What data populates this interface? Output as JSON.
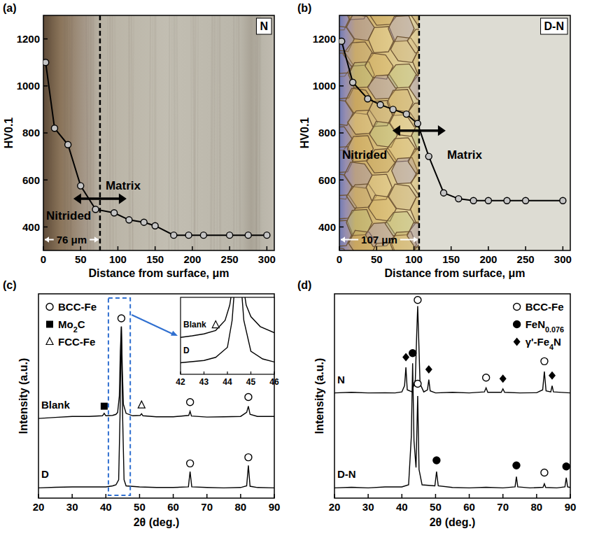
{
  "chart_data": [
    {
      "type": "line",
      "panel_label": "(a)",
      "tag": "N",
      "x_label": "Distance from surface, μm",
      "y_label": "HV0.1",
      "xlim": [
        0,
        310
      ],
      "ylim": [
        300,
        1300
      ],
      "xticks": [
        0,
        50,
        100,
        150,
        200,
        250,
        300
      ],
      "yticks": [
        400,
        600,
        800,
        1000,
        1200
      ],
      "grid": false,
      "series": [
        {
          "x": [
            3,
            15,
            33,
            50,
            70,
            95,
            115,
            135,
            150,
            175,
            195,
            215,
            250,
            275,
            300
          ],
          "values": [
            1100,
            820,
            750,
            575,
            475,
            460,
            430,
            420,
            405,
            365,
            365,
            365,
            365,
            365,
            365
          ],
          "color": "#000000",
          "marker": "circle"
        }
      ],
      "region_labels": [
        "Nitrided",
        "Matrix"
      ],
      "boundary": {
        "value": 76,
        "label": "76 μm"
      }
    },
    {
      "type": "line",
      "panel_label": "(b)",
      "tag": "D-N",
      "x_label": "Distance from surface, μm",
      "y_label": "HV0.1",
      "xlim": [
        0,
        310
      ],
      "ylim": [
        300,
        1300
      ],
      "xticks": [
        0,
        50,
        100,
        150,
        200,
        250,
        300
      ],
      "yticks": [
        400,
        600,
        800,
        1000,
        1200
      ],
      "grid": false,
      "series": [
        {
          "x": [
            3,
            18,
            38,
            55,
            72,
            90,
            105,
            120,
            140,
            160,
            180,
            200,
            225,
            250,
            300
          ],
          "values": [
            1190,
            1015,
            945,
            920,
            900,
            880,
            840,
            700,
            545,
            520,
            512,
            512,
            512,
            512,
            512
          ],
          "color": "#000000",
          "marker": "circle"
        }
      ],
      "region_labels": [
        "Nitrided",
        "Matrix"
      ],
      "boundary": {
        "value": 107,
        "label": "107 μm"
      }
    },
    {
      "type": "line",
      "panel_label": "(c)",
      "x_label": "2θ (deg.)",
      "y_label": "Intensity (a.u.)",
      "xlim": [
        20,
        90
      ],
      "ylim": [
        0,
        100
      ],
      "xticks": [
        20,
        30,
        40,
        50,
        60,
        70,
        80,
        90
      ],
      "tick_labels": "x",
      "grid": false,
      "legend": "top-left",
      "phases": [
        {
          "name": "BCC-Fe",
          "marker": "circle-open"
        },
        {
          "name": "Mo2C",
          "marker": "square"
        },
        {
          "name": "FCC-Fe",
          "marker": "triangle-open"
        }
      ],
      "series": [
        {
          "name": "Blank",
          "color": "#000000",
          "x": [
            20,
            25,
            30,
            35,
            39,
            39.5,
            40,
            42,
            43,
            43.5,
            44,
            44.3,
            44.6,
            44.9,
            45.2,
            46,
            48,
            50.2,
            50.6,
            51,
            55,
            60,
            64.6,
            65,
            65.4,
            70,
            75,
            80,
            81.8,
            82.3,
            82.8,
            85,
            90
          ],
          "values": [
            39,
            39.5,
            40,
            40,
            40.3,
            41.5,
            40.3,
            40.5,
            41,
            42,
            50,
            72,
            84,
            62,
            46,
            41.5,
            40.3,
            40.5,
            41.3,
            40.3,
            39.8,
            39.8,
            40.5,
            42.5,
            40.2,
            39.7,
            39.8,
            40,
            42,
            45,
            41,
            40,
            40
          ]
        },
        {
          "name": "D",
          "color": "#000000",
          "x": [
            20,
            25,
            30,
            35,
            40,
            42,
            43,
            43.8,
            44.2,
            44.6,
            45,
            45.4,
            46,
            50,
            55,
            60,
            64.5,
            65,
            65.5,
            70,
            75,
            80,
            81.8,
            82.3,
            82.8,
            85,
            90
          ],
          "values": [
            5,
            5.3,
            5.5,
            5.5,
            5.5,
            6,
            6.5,
            9,
            40,
            84,
            38,
            9,
            6,
            5.5,
            5.2,
            5.2,
            5.5,
            13,
            5.5,
            5.2,
            5,
            5.2,
            6,
            16,
            5.8,
            5.2,
            5
          ]
        }
      ],
      "peak_markers": [
        {
          "x": 39.5,
          "y": 45,
          "phase": 1
        },
        {
          "x": 44.6,
          "y": 88,
          "phase": 0
        },
        {
          "x": 50.6,
          "y": 45.5,
          "phase": 2
        },
        {
          "x": 65,
          "y": 47,
          "phase": 0
        },
        {
          "x": 82.3,
          "y": 49.5,
          "phase": 0
        },
        {
          "x": 65,
          "y": 17,
          "phase": 0
        },
        {
          "x": 82.3,
          "y": 20,
          "phase": 0
        }
      ],
      "inset": {
        "xlim": [
          42,
          46
        ],
        "ylim": [
          0,
          100
        ],
        "xticks": [
          42,
          43,
          44,
          45,
          46
        ],
        "tick_labels": "x",
        "series": [
          {
            "name": "Blank",
            "color": "#000000",
            "x": [
              42,
              42.5,
              43,
              43.5,
              43.9,
              44.1,
              44.2,
              44.7,
              44.8,
              45,
              45.4,
              46
            ],
            "values": [
              48,
              50,
              52.5,
              57,
              70,
              90,
              110,
              110,
              90,
              75,
              62,
              54
            ]
          },
          {
            "name": "D",
            "color": "#000000",
            "x": [
              42,
              43,
              43.5,
              44,
              44.2,
              44.3,
              44.6,
              44.7,
              45,
              45.5,
              46
            ],
            "values": [
              15,
              18,
              22,
              35,
              70,
              110,
              110,
              70,
              30,
              20,
              16
            ]
          }
        ],
        "peak_markers": [
          {
            "x": 43.5,
            "y": 64,
            "phase": 2
          }
        ]
      }
    },
    {
      "type": "line",
      "panel_label": "(d)",
      "x_label": "2θ (deg.)",
      "y_label": "Intensity (a.u.)",
      "xlim": [
        20,
        90
      ],
      "ylim": [
        0,
        100
      ],
      "xticks": [
        20,
        30,
        40,
        50,
        60,
        70,
        80,
        90
      ],
      "tick_labels": "x",
      "grid": false,
      "legend": "top-right",
      "phases": [
        {
          "name": "BCC-Fe",
          "marker": "circle-open"
        },
        {
          "name": "FeN0.076",
          "marker": "circle"
        },
        {
          "name": "γ'-Fe4N",
          "marker": "diamond"
        }
      ],
      "series": [
        {
          "name": "N",
          "color": "#000000",
          "x": [
            20,
            25,
            30,
            35,
            38,
            40,
            40.8,
            41.2,
            41.6,
            43,
            44,
            44.4,
            44.7,
            45,
            45.4,
            46.5,
            47.6,
            48,
            48.4,
            50,
            55,
            60,
            64.5,
            65,
            65.5,
            69.5,
            70,
            70.5,
            75,
            80,
            81.8,
            82.3,
            82.8,
            84.2,
            84.6,
            85,
            90
          ],
          "values": [
            51.5,
            51.8,
            51.5,
            51.6,
            51.5,
            52,
            55,
            64,
            53,
            52,
            58,
            80,
            94,
            78,
            56,
            52,
            53,
            58,
            52.5,
            51.5,
            51.8,
            51.5,
            52,
            54,
            51.8,
            51.8,
            53.5,
            51.8,
            51.5,
            51.6,
            53,
            62,
            52.5,
            52,
            55,
            52,
            51.5
          ]
        },
        {
          "name": "D-N",
          "color": "#000000",
          "x": [
            20,
            25,
            30,
            35,
            40,
            42,
            42.8,
            43.2,
            43.6,
            44.2,
            44.7,
            45.1,
            46,
            49.8,
            50.3,
            50.8,
            55,
            60,
            65,
            70,
            73.6,
            74,
            74.4,
            78,
            81.9,
            82.3,
            82.7,
            86,
            88.4,
            88.8,
            89.2,
            90
          ],
          "values": [
            5,
            5.3,
            5,
            5.5,
            5.5,
            6.5,
            30,
            66,
            28,
            15,
            50,
            14,
            6.5,
            6,
            13,
            6,
            5.2,
            5,
            5.3,
            5,
            5.5,
            10.5,
            5.5,
            5,
            5.3,
            7,
            5.2,
            5,
            5.5,
            10,
            5.5,
            5.2
          ]
        }
      ],
      "peak_markers": [
        {
          "x": 41.2,
          "y": 69,
          "phase": 2
        },
        {
          "x": 44.7,
          "y": 97,
          "phase": 0
        },
        {
          "x": 48,
          "y": 63,
          "phase": 2
        },
        {
          "x": 65,
          "y": 59,
          "phase": 0
        },
        {
          "x": 70,
          "y": 58.5,
          "phase": 2
        },
        {
          "x": 82.3,
          "y": 67,
          "phase": 0
        },
        {
          "x": 84.6,
          "y": 60,
          "phase": 2
        },
        {
          "x": 43.2,
          "y": 71,
          "phase": 1
        },
        {
          "x": 44.7,
          "y": 56,
          "phase": 0
        },
        {
          "x": 50.3,
          "y": 18.5,
          "phase": 1
        },
        {
          "x": 74,
          "y": 16,
          "phase": 1
        },
        {
          "x": 82.3,
          "y": 12.5,
          "phase": 0
        },
        {
          "x": 88.8,
          "y": 15.5,
          "phase": 1
        }
      ]
    }
  ]
}
